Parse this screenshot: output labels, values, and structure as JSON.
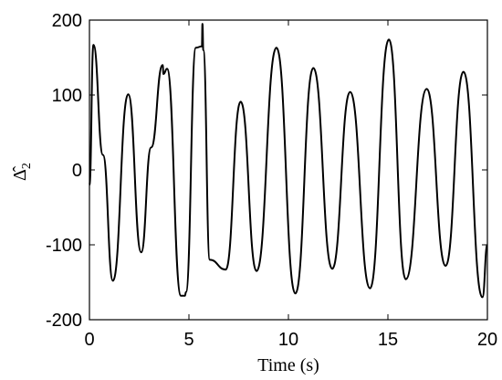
{
  "chart_data": {
    "type": "line",
    "title": "",
    "xlabel": "Time (s)",
    "ylabel": "Δ̂",
    "ylabel_subscript": "2",
    "xlim": [
      0,
      20
    ],
    "ylim": [
      -200,
      200
    ],
    "xticks": [
      0,
      5,
      10,
      15,
      20
    ],
    "yticks": [
      -200,
      -100,
      0,
      100,
      200
    ],
    "grid": false,
    "legend": "none",
    "line_color": "#000000",
    "series": [
      {
        "x": [
          0,
          0.2,
          0.68,
          1.18,
          1.95,
          2.6,
          3.1,
          3.68,
          3.72,
          3.9,
          4.6,
          4.8,
          4.85,
          5.35,
          5.65,
          5.68,
          5.72,
          6.05,
          6.85,
          7.6,
          8.4,
          9.4,
          10.35,
          11.25,
          12.2,
          13.1,
          14.1,
          15.05,
          15.9,
          16.95,
          17.9,
          18.8,
          19.75,
          20
        ],
        "y": [
          -20,
          167,
          20,
          -148,
          101,
          -110,
          30,
          140,
          128,
          135,
          -168,
          -168,
          -163,
          163,
          165,
          195,
          160,
          -120,
          -133,
          91,
          -135,
          163,
          -165,
          136,
          -132,
          104,
          -158,
          174,
          -146,
          108,
          -128,
          131,
          -170,
          -100
        ]
      }
    ]
  }
}
